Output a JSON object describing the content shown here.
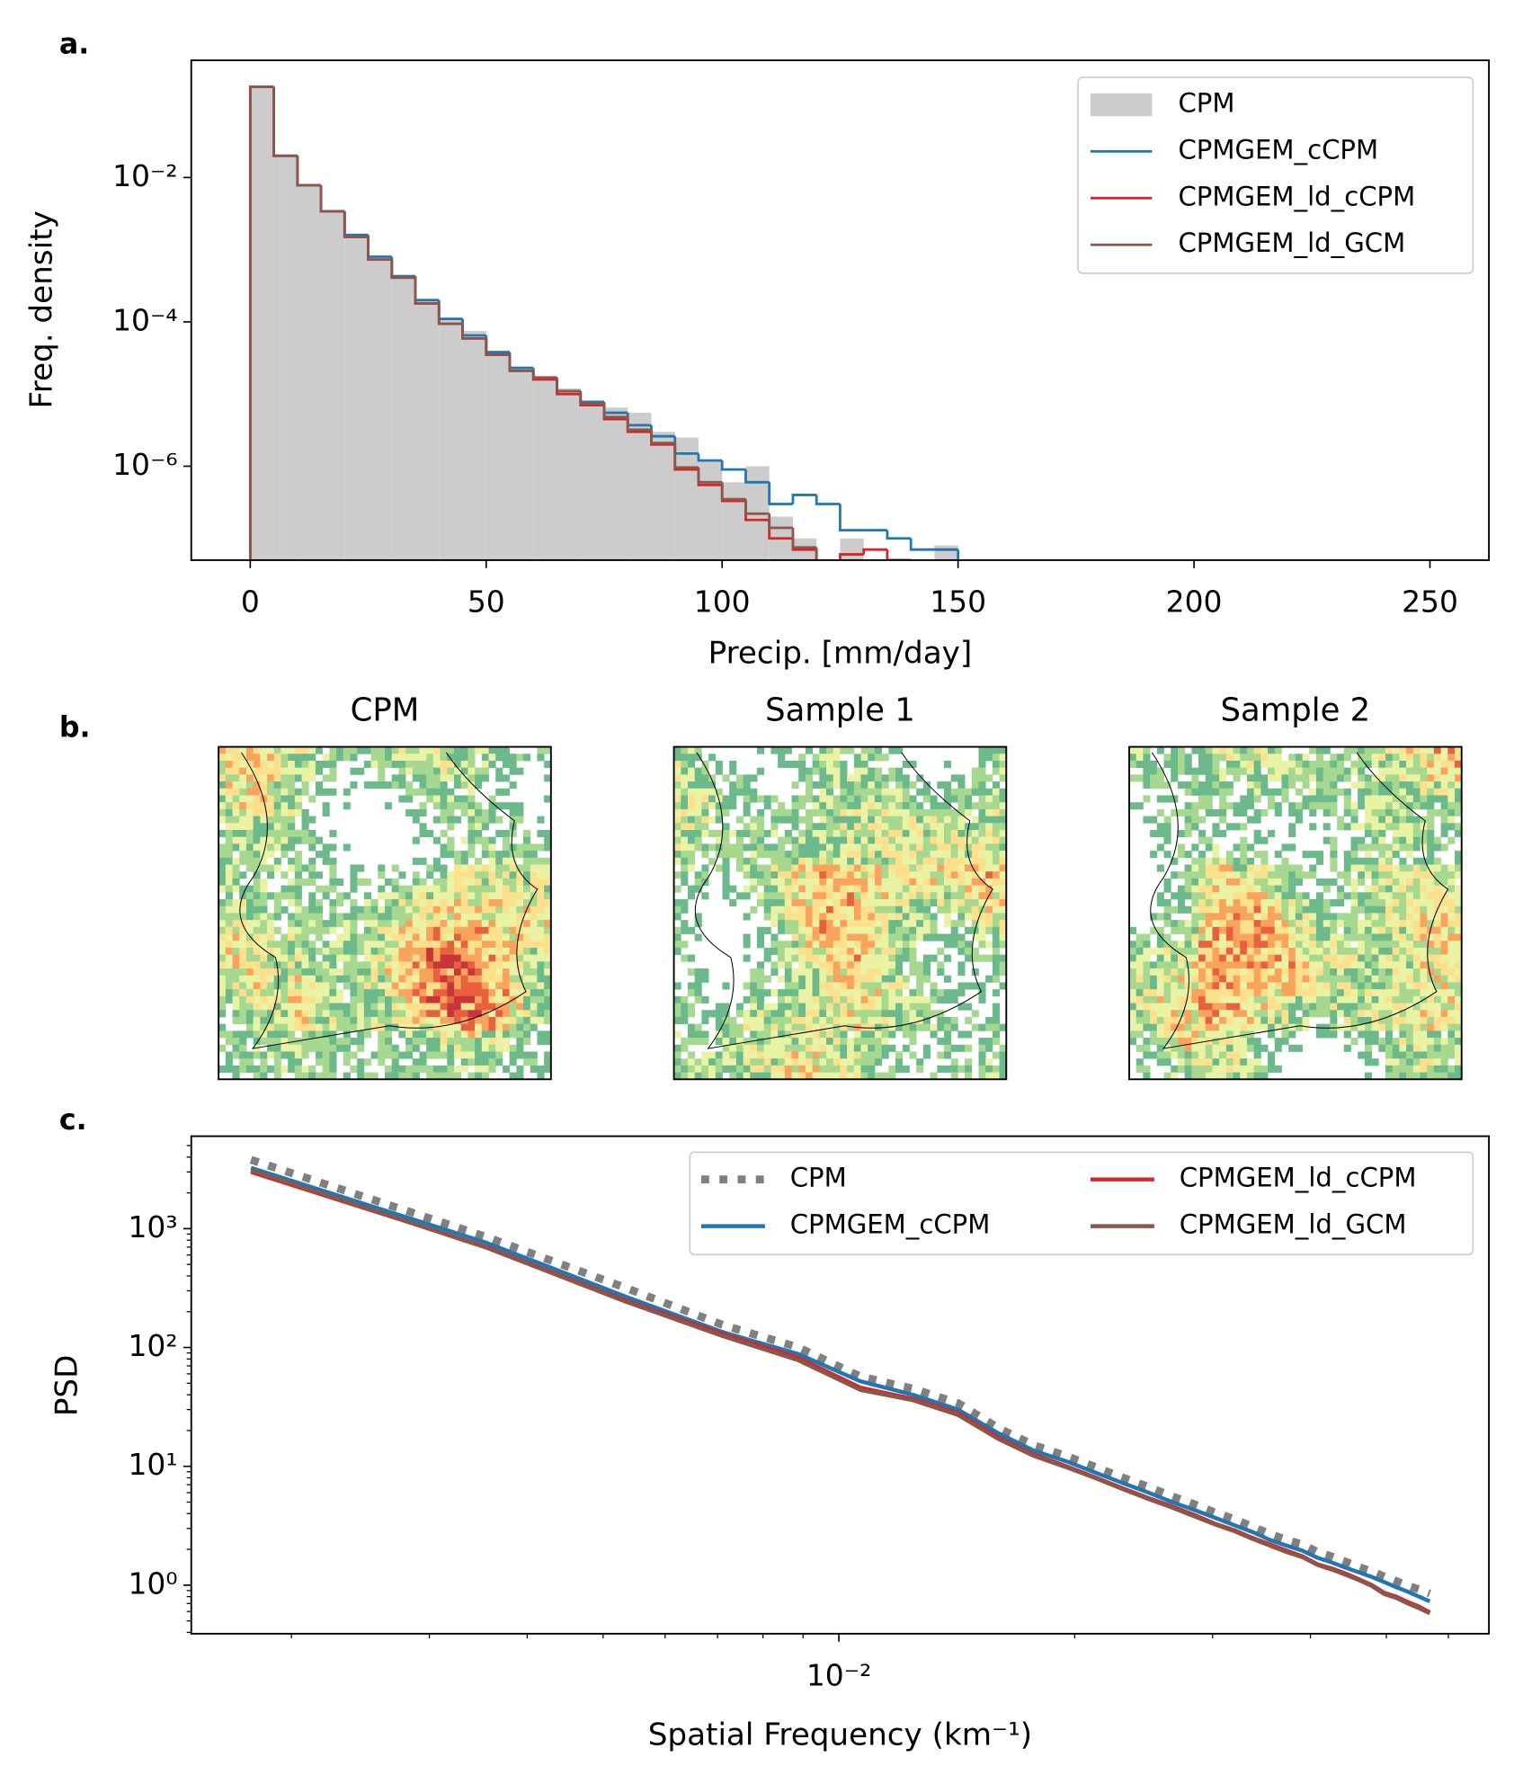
{
  "chart_data": [
    {
      "type": "histogram",
      "panel_label": "a.",
      "xlabel": "Precip. [mm/day]",
      "ylabel": "Freq. density",
      "bins": [
        0,
        5,
        10,
        15,
        20,
        25,
        30,
        35,
        40,
        45,
        50,
        55,
        60,
        65,
        70,
        75,
        80,
        85,
        90,
        95,
        100,
        105,
        110,
        115,
        120,
        125,
        130,
        135,
        140,
        145,
        150,
        155,
        160,
        165,
        170,
        175,
        180,
        185,
        190,
        195,
        200,
        205,
        210,
        215,
        220,
        225,
        230,
        235,
        240,
        245,
        250
      ],
      "series": [
        {
          "name": "CPM",
          "color": "#cccccc",
          "filled": true,
          "values": [
            0.18,
            0.02,
            0.0078,
            0.0034,
            0.0016,
            0.00075,
            0.00042,
            0.0002,
            0.00011,
            7.5e-05,
            4e-05,
            2.4e-05,
            1.6e-05,
            1.2e-05,
            8e-06,
            6.5e-06,
            5.5e-06,
            3e-06,
            2.5e-06,
            1.2e-06,
            6e-07,
            1e-06,
            2e-07,
            1e-07,
            0,
            1e-07,
            0,
            0,
            0,
            8e-08,
            0,
            0,
            0,
            0,
            0,
            0,
            0,
            0,
            0,
            0,
            0,
            0,
            0,
            0,
            0,
            0,
            0,
            0,
            0,
            0
          ]
        },
        {
          "name": "CPMGEM_cCPM",
          "color": "#1f77b4",
          "filled": false,
          "values": [
            0.18,
            0.02,
            0.0078,
            0.0034,
            0.0016,
            0.0008,
            0.00043,
            0.0002,
            0.00011,
            6.5e-05,
            3.8e-05,
            2.3e-05,
            1.6e-05,
            1.1e-05,
            7.8e-06,
            5.5e-06,
            3.7e-06,
            2.6e-06,
            1.5e-06,
            1.2e-06,
            9e-07,
            6e-07,
            3e-07,
            4e-07,
            3e-07,
            1.3e-07,
            1.3e-07,
            1e-07,
            7e-08,
            7e-08,
            0,
            0,
            0,
            0,
            0,
            0,
            0,
            0,
            0,
            0,
            0,
            0,
            0,
            0,
            0,
            0,
            0,
            0,
            0,
            0
          ]
        },
        {
          "name": "CPMGEM_ld_cCPM",
          "color": "#d62728",
          "filled": false,
          "values": [
            0.18,
            0.02,
            0.0078,
            0.0034,
            0.0015,
            0.00073,
            0.00041,
            0.00018,
            9.4e-05,
            5.9e-05,
            3.5e-05,
            2.1e-05,
            1.6e-05,
            1e-05,
            7e-06,
            4.5e-06,
            3e-06,
            2e-06,
            9e-07,
            5.5e-07,
            3.3e-07,
            1.8e-07,
            1e-07,
            7e-08,
            0,
            6e-08,
            7e-08,
            5e-08,
            0,
            0,
            0,
            0,
            0,
            0,
            0,
            0,
            0,
            0,
            0,
            0,
            0,
            0,
            0,
            0,
            0,
            0,
            0,
            0,
            0,
            0
          ]
        },
        {
          "name": "CPMGEM_ld_GCM",
          "color": "#8c564b",
          "filled": false,
          "values": [
            0.18,
            0.02,
            0.0078,
            0.0034,
            0.0015,
            0.00073,
            0.00041,
            0.00018,
            9.4e-05,
            5.9e-05,
            3.5e-05,
            2.1e-05,
            1.7e-05,
            1.1e-05,
            7.4e-06,
            4.8e-06,
            3.2e-06,
            2.1e-06,
            9.6e-07,
            6e-07,
            3.5e-07,
            2.2e-07,
            1.4e-07,
            7.5e-08,
            0,
            0,
            0,
            0,
            0,
            0,
            0,
            0,
            0,
            0,
            0,
            0,
            0,
            0,
            0,
            0,
            0,
            0,
            0,
            0,
            0,
            0,
            0,
            0,
            0,
            0
          ]
        }
      ],
      "xlim": [
        -12.5,
        262.5
      ],
      "ylim": [
        5e-08,
        0.42
      ],
      "yscale": "log",
      "xticks": [
        0,
        50,
        100,
        150,
        200,
        250
      ],
      "yticks": [
        {
          "value": 0.01,
          "label": "10⁻²"
        },
        {
          "value": 0.0001,
          "label": "10⁻⁴"
        },
        {
          "value": 1e-06,
          "label": "10⁻⁶"
        }
      ],
      "legend": "upper right"
    },
    {
      "type": "map",
      "panel_label": "b.",
      "titles": [
        "CPM",
        "Sample 1",
        "Sample 2"
      ]
    },
    {
      "type": "line",
      "panel_label": "c.",
      "xlabel": "Spatial Frequency (km⁻¹)",
      "ylabel": "PSD",
      "x": [
        0.001776,
        0.003551,
        0.005327,
        0.007102,
        0.008878,
        0.01065,
        0.01243,
        0.0142,
        0.01598,
        0.01776,
        0.01953,
        0.02131,
        0.02308,
        0.02486,
        0.02663,
        0.02841,
        0.03018,
        0.03196,
        0.03374,
        0.03551,
        0.03729,
        0.03906,
        0.04084,
        0.04261,
        0.04439,
        0.04616,
        0.04794,
        0.04972,
        0.05149,
        0.05327,
        0.05504,
        0.05682
      ],
      "series": [
        {
          "name": "CPM",
          "color": "#808080",
          "style": "dotted",
          "values": [
            3800,
            850,
            320,
            155,
            100,
            57,
            45,
            34,
            21,
            15,
            12.2,
            9.8,
            8.0,
            6.7,
            5.6,
            4.8,
            4.1,
            3.6,
            3.1,
            2.7,
            2.4,
            2.2,
            1.9,
            1.74,
            1.57,
            1.42,
            1.3,
            1.18,
            1.08,
            0.99,
            0.92,
            0.85
          ]
        },
        {
          "name": "CPMGEM_cCPM",
          "color": "#1f77b4",
          "style": "solid",
          "values": [
            3250,
            760,
            270,
            135,
            88,
            52,
            40,
            30,
            19,
            13.5,
            11,
            8.8,
            7.2,
            6.0,
            5.0,
            4.3,
            3.7,
            3.2,
            2.8,
            2.4,
            2.15,
            1.95,
            1.7,
            1.55,
            1.4,
            1.28,
            1.17,
            1.06,
            0.96,
            0.88,
            0.8,
            0.73
          ]
        },
        {
          "name": "CPMGEM_ld_cCPM",
          "color": "#d62728",
          "style": "solid",
          "values": [
            3000,
            700,
            250,
            130,
            82,
            46,
            37,
            28,
            17.5,
            12.5,
            10,
            8.0,
            6.5,
            5.4,
            4.6,
            3.9,
            3.3,
            2.9,
            2.5,
            2.2,
            1.95,
            1.75,
            1.5,
            1.38,
            1.25,
            1.12,
            1.0,
            0.86,
            0.8,
            0.72,
            0.66,
            0.59
          ]
        },
        {
          "name": "CPMGEM_ld_GCM",
          "color": "#8c564b",
          "style": "solid",
          "values": [
            3100,
            690,
            245,
            125,
            78,
            44,
            36,
            27,
            17,
            12.2,
            9.8,
            7.9,
            6.4,
            5.3,
            4.5,
            3.8,
            3.25,
            2.85,
            2.45,
            2.15,
            1.9,
            1.72,
            1.48,
            1.35,
            1.22,
            1.1,
            0.98,
            0.84,
            0.78,
            0.7,
            0.64,
            0.58
          ]
        }
      ],
      "xscale": "log",
      "yscale": "log",
      "xlim": [
        0.00149,
        0.0676
      ],
      "ylim": [
        0.39,
        6000
      ],
      "xticks": [
        {
          "value": 0.01,
          "label": "10⁻²"
        }
      ],
      "xminorticks": [
        0.002,
        0.003,
        0.004,
        0.005,
        0.006,
        0.007,
        0.008,
        0.009,
        0.02,
        0.03,
        0.04,
        0.05,
        0.06
      ],
      "yticks": [
        {
          "value": 1,
          "label": "10⁰"
        },
        {
          "value": 10,
          "label": "10¹"
        },
        {
          "value": 100,
          "label": "10²"
        },
        {
          "value": 1000,
          "label": "10³"
        }
      ],
      "yminorticks": [
        0.4,
        0.5,
        0.6,
        0.7,
        0.8,
        0.9,
        2,
        3,
        4,
        5,
        6,
        7,
        8,
        9,
        20,
        30,
        40,
        50,
        60,
        70,
        80,
        90,
        200,
        300,
        400,
        500,
        600,
        700,
        800,
        900,
        2000,
        3000,
        4000,
        5000
      ],
      "legend": "upper right",
      "legend_columns": 2
    }
  ]
}
